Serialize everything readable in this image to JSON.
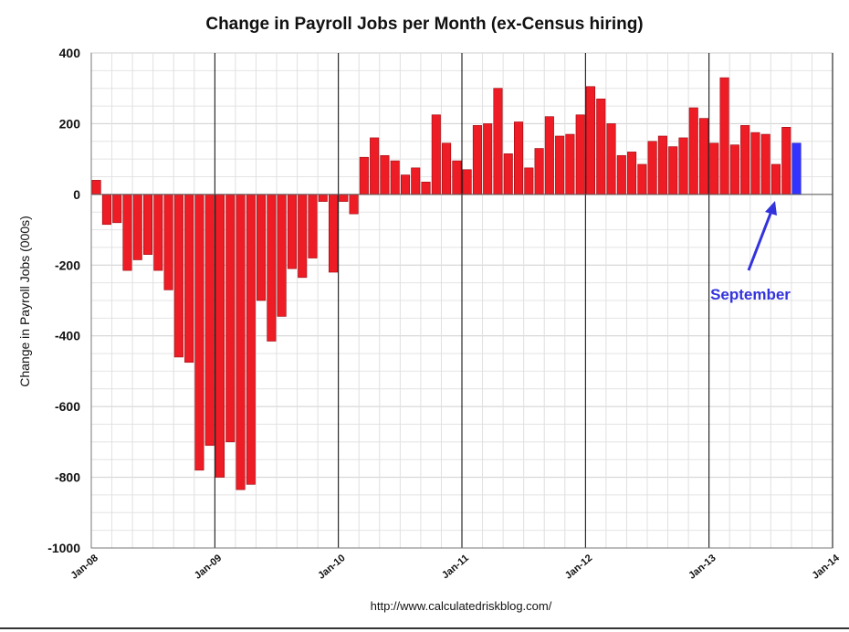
{
  "chart_data": {
    "type": "bar",
    "title": "Change in Payroll Jobs per Month (ex-Census hiring)",
    "xlabel": "",
    "ylabel": "Change in Payroll Jobs (000s)",
    "ylim": [
      -1000,
      400
    ],
    "yticks": [
      "400",
      "200",
      "0",
      "-200",
      "-400",
      "-600",
      "-800",
      "-1000"
    ],
    "ytick_values": [
      400,
      200,
      0,
      -200,
      -400,
      -600,
      -800,
      -1000
    ],
    "xticks": [
      "Jan-08",
      "Jan-09",
      "Jan-10",
      "Jan-11",
      "Jan-12",
      "Jan-13",
      "Jan-14"
    ],
    "start": "Jan-08",
    "months_span": 72,
    "grid": true,
    "series": [
      {
        "name": "Change in Payroll Jobs",
        "color": "#ee1c25",
        "highlight_color": "#3333ff",
        "highlight_last": true,
        "values": [
          40,
          -85,
          -80,
          -215,
          -185,
          -170,
          -215,
          -270,
          -460,
          -475,
          -780,
          -710,
          -800,
          -700,
          -835,
          -820,
          -300,
          -415,
          -345,
          -210,
          -235,
          -180,
          -20,
          -220,
          -20,
          -55,
          105,
          160,
          110,
          95,
          55,
          75,
          35,
          225,
          145,
          95,
          70,
          195,
          200,
          300,
          115,
          205,
          75,
          130,
          220,
          165,
          170,
          225,
          305,
          270,
          200,
          110,
          120,
          85,
          150,
          165,
          135,
          160,
          245,
          215,
          145,
          330,
          140,
          195,
          175,
          170,
          85,
          190,
          145
        ]
      }
    ],
    "annotations": [
      {
        "text": "September",
        "color": "#3333dd"
      }
    ],
    "source": "http://www.calculatedriskblog.com/"
  }
}
